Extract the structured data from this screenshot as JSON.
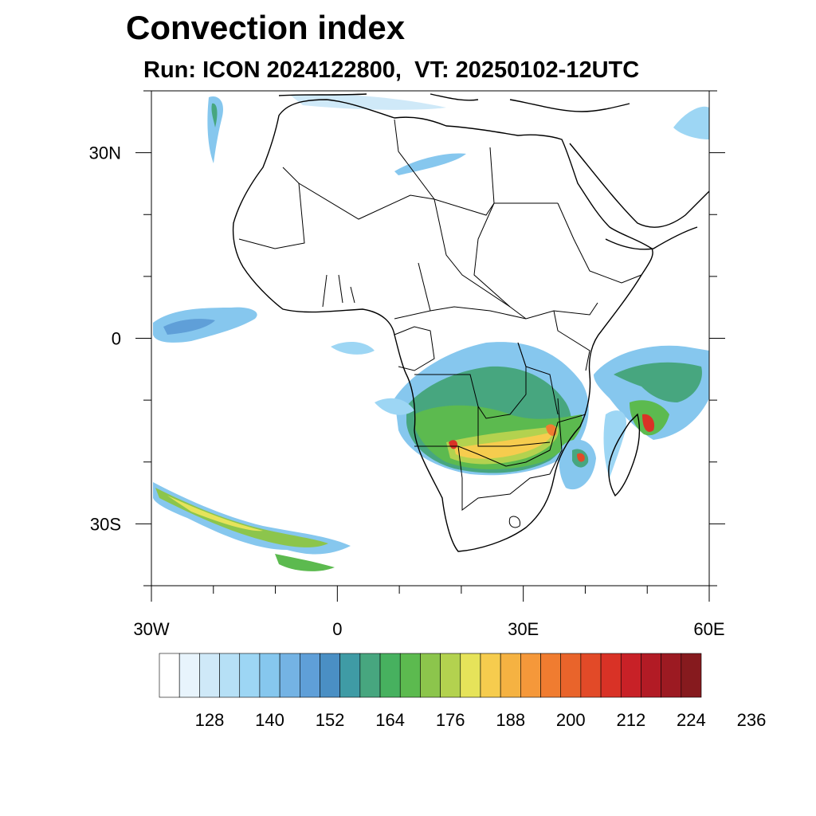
{
  "title": "Convection index",
  "subtitle": "Run: ICON 2024122800,  VT: 20250102-12UTC",
  "lat_ticks": [
    {
      "lat": 30,
      "label": "30N"
    },
    {
      "lat": 0,
      "label": "0"
    },
    {
      "lat": -30,
      "label": "30S"
    }
  ],
  "lon_ticks": [
    {
      "lon": -30,
      "label": "30W"
    },
    {
      "lon": 0,
      "label": "0"
    },
    {
      "lon": 30,
      "label": "30E"
    },
    {
      "lon": 60,
      "label": "60E"
    }
  ],
  "extent": {
    "lon_min": -30,
    "lon_max": 60,
    "lat_min": -40,
    "lat_max": 40
  },
  "colorbar": {
    "colors": [
      "#ffffff",
      "#e8f4fc",
      "#cfe9f8",
      "#b6e0f6",
      "#9dd6f4",
      "#86c7ee",
      "#74b3e4",
      "#5f9fd8",
      "#4a8fc4",
      "#3f9ba5",
      "#47a67f",
      "#47b15f",
      "#5cba4f",
      "#8cc54c",
      "#b3d24f",
      "#e6e35a",
      "#f6cc4e",
      "#f5b242",
      "#f5983a",
      "#f07c30",
      "#e9642b",
      "#e24a28",
      "#d93226",
      "#c82127",
      "#b21b25",
      "#9c1a22",
      "#861a1e"
    ],
    "labels": [
      "128",
      "140",
      "152",
      "164",
      "176",
      "188",
      "200",
      "212",
      "224",
      "236"
    ],
    "label_bins": [
      2,
      5,
      8,
      11,
      14,
      17,
      20,
      23,
      26,
      29
    ]
  }
}
